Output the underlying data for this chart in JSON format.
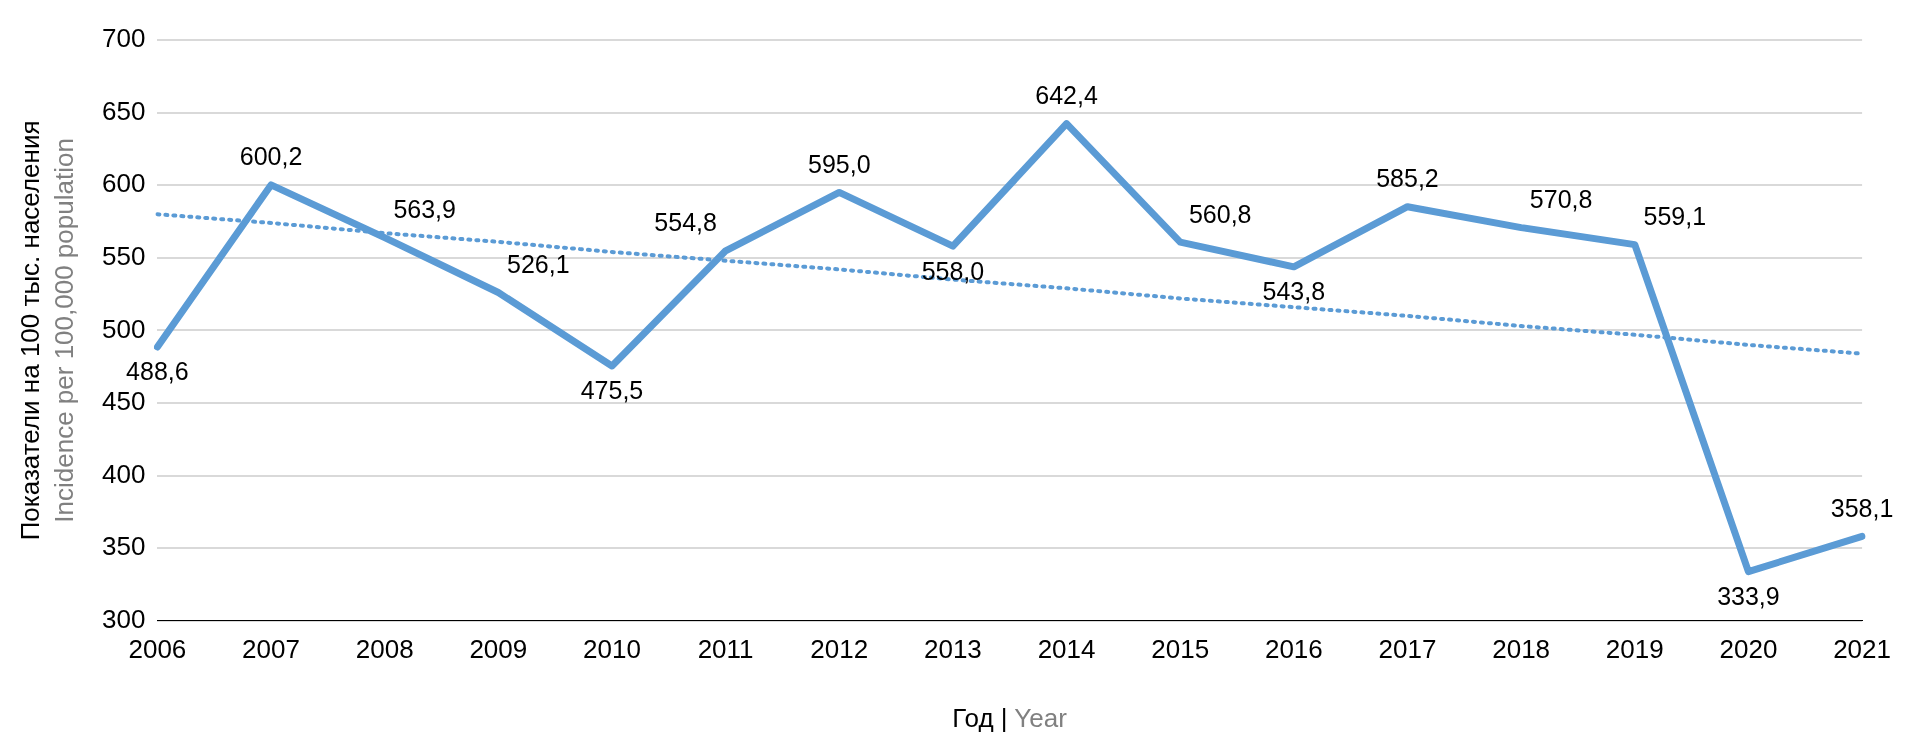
{
  "chart_data": {
    "type": "line",
    "xlabel": "Год | Year",
    "ylabel": "Показатели на 100 тыс. населения\nIncidence per 100,000 population",
    "categories": [
      "2006",
      "2007",
      "2008",
      "2009",
      "2010",
      "2011",
      "2012",
      "2013",
      "2014",
      "2015",
      "2016",
      "2017",
      "2018",
      "2019",
      "2020",
      "2021"
    ],
    "series": [
      {
        "color": "#5b9bd5",
        "line_style": "solid",
        "values": [
          488.6,
          600.2,
          563.9,
          526.1,
          475.5,
          554.8,
          595.0,
          558.0,
          642.4,
          560.8,
          543.8,
          585.2,
          570.8,
          559.1,
          333.9,
          358.1
        ],
        "value_labels": [
          "488,6",
          "600,2",
          "563,9",
          "526,1",
          "475,5",
          "554,8",
          "595,0",
          "558,0",
          "642,4",
          "560,8",
          "543,8",
          "585,2",
          "570,8",
          "559,1",
          "333,9",
          "358,1"
        ]
      },
      {
        "type": "line",
        "color": "#5b9bd5",
        "line_style": "dotted",
        "values": [
          580,
          574,
          567,
          561,
          554,
          548,
          542,
          535,
          529,
          522,
          516,
          510,
          503,
          497,
          490,
          484
        ]
      }
    ],
    "ylim": [
      300,
      700
    ],
    "yticks": [
      300,
      350,
      400,
      450,
      500,
      550,
      600,
      650,
      700
    ],
    "grid": "y",
    "legend": false,
    "marker": "none"
  }
}
